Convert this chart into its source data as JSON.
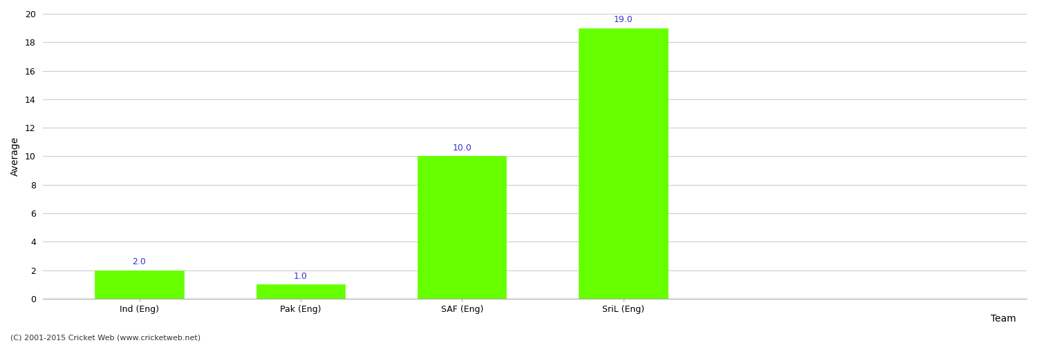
{
  "categories": [
    "Ind (Eng)",
    "Pak (Eng)",
    "SAF (Eng)",
    "SriL (Eng)"
  ],
  "values": [
    2.0,
    1.0,
    10.0,
    19.0
  ],
  "bar_color": "#66ff00",
  "bar_edge_color": "#66ff00",
  "xlabel": "Team",
  "ylabel": "Average",
  "ylim": [
    0,
    20
  ],
  "yticks": [
    0,
    2,
    4,
    6,
    8,
    10,
    12,
    14,
    16,
    18,
    20
  ],
  "annotation_color": "#3333cc",
  "annotation_fontsize": 9,
  "axis_label_fontsize": 10,
  "tick_fontsize": 9,
  "grid_color": "#cccccc",
  "background_color": "#ffffff",
  "footer_text": "(C) 2001-2015 Cricket Web (www.cricketweb.net)",
  "footer_fontsize": 8,
  "footer_color": "#333333",
  "bar_width": 0.55,
  "xlim_left": -0.6,
  "xlim_right": 5.5
}
